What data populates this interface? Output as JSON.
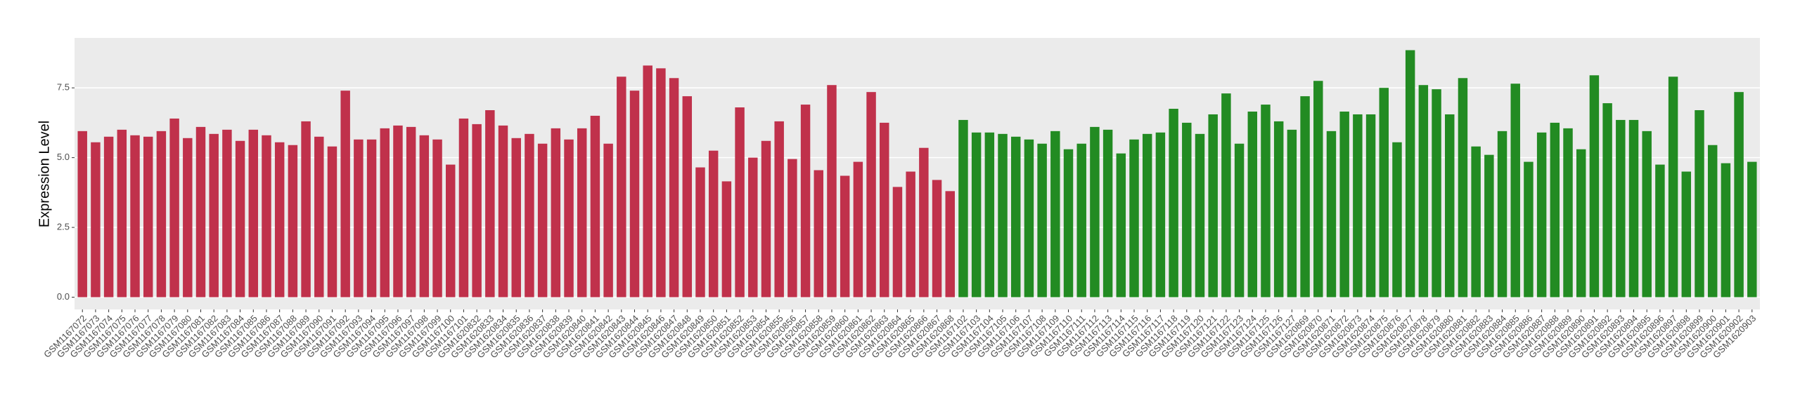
{
  "chart_data": {
    "type": "bar",
    "y_label": "Expression Level",
    "categories": [
      "GSM1167072",
      "GSM1167073",
      "GSM1167074",
      "GSM1167075",
      "GSM1167076",
      "GSM1167077",
      "GSM1167078",
      "GSM1167079",
      "GSM1167080",
      "GSM1167081",
      "GSM1167082",
      "GSM1167083",
      "GSM1167084",
      "GSM1167085",
      "GSM1167086",
      "GSM1167087",
      "GSM1167088",
      "GSM1167089",
      "GSM1167090",
      "GSM1167091",
      "GSM1167092",
      "GSM1167093",
      "GSM1167094",
      "GSM1167095",
      "GSM1167096",
      "GSM1167097",
      "GSM1167098",
      "GSM1167099",
      "GSM1167100",
      "GSM1167101",
      "GSM1620832",
      "GSM1620833",
      "GSM1620834",
      "GSM1620835",
      "GSM1620836",
      "GSM1620837",
      "GSM1620838",
      "GSM1620839",
      "GSM1620840",
      "GSM1620841",
      "GSM1620842",
      "GSM1620843",
      "GSM1620844",
      "GSM1620845",
      "GSM1620846",
      "GSM1620847",
      "GSM1620848",
      "GSM1620849",
      "GSM1620850",
      "GSM1620851",
      "GSM1620852",
      "GSM1620853",
      "GSM1620854",
      "GSM1620855",
      "GSM1620856",
      "GSM1620857",
      "GSM1620858",
      "GSM1620859",
      "GSM1620860",
      "GSM1620861",
      "GSM1620862",
      "GSM1620863",
      "GSM1620864",
      "GSM1620865",
      "GSM1620866",
      "GSM1620867",
      "GSM1620868",
      "GSM1167102",
      "GSM1167103",
      "GSM1167104",
      "GSM1167105",
      "GSM1167106",
      "GSM1167107",
      "GSM1167108",
      "GSM1167109",
      "GSM1167110",
      "GSM1167111",
      "GSM1167112",
      "GSM1167113",
      "GSM1167114",
      "GSM1167115",
      "GSM1167116",
      "GSM1167117",
      "GSM1167118",
      "GSM1167119",
      "GSM1167120",
      "GSM1167121",
      "GSM1167122",
      "GSM1167123",
      "GSM1167124",
      "GSM1167125",
      "GSM1167126",
      "GSM1167127",
      "GSM1620869",
      "GSM1620870",
      "GSM1620871",
      "GSM1620872",
      "GSM1620873",
      "GSM1620874",
      "GSM1620875",
      "GSM1620876",
      "GSM1620877",
      "GSM1620878",
      "GSM1620879",
      "GSM1620880",
      "GSM1620881",
      "GSM1620882",
      "GSM1620883",
      "GSM1620884",
      "GSM1620885",
      "GSM1620886",
      "GSM1620887",
      "GSM1620888",
      "GSM1620889",
      "GSM1620890",
      "GSM1620891",
      "GSM1620892",
      "GSM1620893",
      "GSM1620894",
      "GSM1620895",
      "GSM1620896",
      "GSM1620897",
      "GSM1620898",
      "GSM1620899",
      "GSM1620900",
      "GSM1620901",
      "GSM1620902",
      "GSM1620903"
    ],
    "values": [
      5.95,
      5.55,
      5.75,
      6.0,
      5.8,
      5.75,
      5.95,
      6.4,
      5.7,
      6.1,
      5.85,
      6.0,
      5.6,
      6.0,
      5.8,
      5.55,
      5.45,
      6.3,
      5.75,
      5.4,
      7.4,
      5.65,
      5.65,
      6.05,
      6.15,
      6.1,
      5.8,
      5.65,
      4.75,
      6.4,
      6.2,
      6.7,
      6.15,
      5.7,
      5.85,
      5.5,
      6.05,
      5.65,
      6.05,
      6.5,
      5.5,
      7.9,
      7.4,
      8.3,
      8.2,
      7.85,
      7.2,
      4.65,
      5.25,
      4.15,
      6.8,
      5.0,
      5.6,
      6.3,
      4.95,
      6.9,
      4.55,
      7.6,
      4.35,
      4.85,
      7.35,
      6.25,
      3.95,
      4.5,
      5.35,
      4.2,
      3.8,
      6.35,
      5.9,
      5.9,
      5.85,
      5.75,
      5.65,
      5.5,
      5.95,
      5.3,
      5.5,
      6.1,
      6.0,
      5.15,
      5.65,
      5.85,
      5.9,
      6.75,
      6.25,
      5.85,
      6.55,
      7.3,
      5.5,
      6.65,
      6.9,
      6.3,
      6.0,
      7.2,
      7.75,
      5.95,
      6.65,
      6.55,
      6.55,
      7.5,
      5.55,
      8.85,
      7.6,
      7.45,
      6.55,
      7.85,
      5.4,
      5.1,
      5.95,
      7.65,
      4.85,
      5.9,
      6.25,
      6.05,
      5.3,
      7.95,
      6.95,
      6.35,
      6.35,
      5.95,
      4.75,
      7.9,
      4.5,
      6.7,
      5.45,
      4.8,
      7.35,
      4.85
    ],
    "colors": [
      "#c0314b",
      "#c0314b",
      "#c0314b",
      "#c0314b",
      "#c0314b",
      "#c0314b",
      "#c0314b",
      "#c0314b",
      "#c0314b",
      "#c0314b",
      "#c0314b",
      "#c0314b",
      "#c0314b",
      "#c0314b",
      "#c0314b",
      "#c0314b",
      "#c0314b",
      "#c0314b",
      "#c0314b",
      "#c0314b",
      "#c0314b",
      "#c0314b",
      "#c0314b",
      "#c0314b",
      "#c0314b",
      "#c0314b",
      "#c0314b",
      "#c0314b",
      "#c0314b",
      "#c0314b",
      "#c0314b",
      "#c0314b",
      "#c0314b",
      "#c0314b",
      "#c0314b",
      "#c0314b",
      "#c0314b",
      "#c0314b",
      "#c0314b",
      "#c0314b",
      "#c0314b",
      "#c0314b",
      "#c0314b",
      "#c0314b",
      "#c0314b",
      "#c0314b",
      "#c0314b",
      "#c0314b",
      "#c0314b",
      "#c0314b",
      "#c0314b",
      "#c0314b",
      "#c0314b",
      "#c0314b",
      "#c0314b",
      "#c0314b",
      "#c0314b",
      "#c0314b",
      "#c0314b",
      "#c0314b",
      "#c0314b",
      "#c0314b",
      "#c0314b",
      "#c0314b",
      "#c0314b",
      "#c0314b",
      "#c0314b",
      "#228b22",
      "#228b22",
      "#228b22",
      "#228b22",
      "#228b22",
      "#228b22",
      "#228b22",
      "#228b22",
      "#228b22",
      "#228b22",
      "#228b22",
      "#228b22",
      "#228b22",
      "#228b22",
      "#228b22",
      "#228b22",
      "#228b22",
      "#228b22",
      "#228b22",
      "#228b22",
      "#228b22",
      "#228b22",
      "#228b22",
      "#228b22",
      "#228b22",
      "#228b22",
      "#228b22",
      "#228b22",
      "#228b22",
      "#228b22",
      "#228b22",
      "#228b22",
      "#228b22",
      "#228b22",
      "#228b22",
      "#228b22",
      "#228b22",
      "#228b22",
      "#228b22",
      "#228b22",
      "#228b22",
      "#228b22",
      "#228b22",
      "#228b22",
      "#228b22",
      "#228b22",
      "#228b22",
      "#228b22",
      "#228b22",
      "#228b22",
      "#228b22",
      "#228b22",
      "#228b22",
      "#228b22",
      "#228b22",
      "#228b22",
      "#228b22",
      "#228b22",
      "#228b22",
      "#228b22",
      "#228b22"
    ],
    "ylim": [
      -0.44,
      9.29
    ],
    "yticks": [
      {
        "value": 0,
        "label": "0.0"
      },
      2.5,
      {
        "value": 5,
        "label": "5.0"
      },
      7.5
    ],
    "grid": true
  }
}
